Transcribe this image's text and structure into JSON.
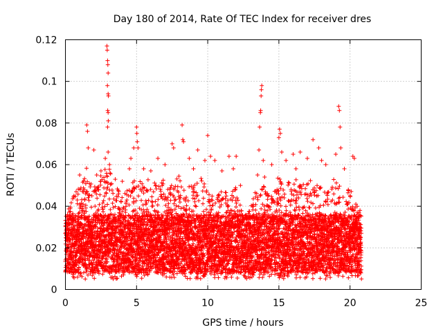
{
  "chart_data": {
    "type": "scatter",
    "title": "Day 180 of 2014, Rate Of TEC Index for receiver dres",
    "xlabel": "GPS time / hours",
    "ylabel": "ROTI / TECUs",
    "xlim": [
      0,
      25
    ],
    "ylim": [
      0,
      0.12
    ],
    "x_ticks": [
      0,
      5,
      10,
      15,
      20,
      25
    ],
    "y_ticks": [
      0,
      0.02,
      0.04,
      0.06,
      0.08,
      0.1,
      0.12
    ],
    "x_tick_labels": [
      "0",
      "5",
      "10",
      "15",
      "20",
      "25"
    ],
    "y_tick_labels": [
      "0",
      "0.02",
      "0.04",
      "0.06",
      "0.08",
      "0.1",
      "0.12"
    ],
    "grid": true,
    "legend": "none",
    "marker": "plus",
    "marker_color": "#ff0000",
    "x_data_range": [
      0,
      20.8
    ],
    "dense_band": [
      0.005,
      0.04
    ],
    "envelope": [
      [
        0.0,
        0.033
      ],
      [
        0.5,
        0.046
      ],
      [
        1.0,
        0.05
      ],
      [
        1.5,
        0.06
      ],
      [
        2.0,
        0.05
      ],
      [
        2.5,
        0.055
      ],
      [
        3.0,
        0.06
      ],
      [
        3.5,
        0.05
      ],
      [
        4.0,
        0.045
      ],
      [
        4.5,
        0.05
      ],
      [
        5.0,
        0.055
      ],
      [
        5.5,
        0.05
      ],
      [
        6.0,
        0.055
      ],
      [
        6.5,
        0.05
      ],
      [
        7.0,
        0.055
      ],
      [
        7.5,
        0.05
      ],
      [
        8.0,
        0.055
      ],
      [
        8.5,
        0.05
      ],
      [
        9.0,
        0.05
      ],
      [
        9.5,
        0.055
      ],
      [
        10.0,
        0.05
      ],
      [
        10.5,
        0.045
      ],
      [
        11.0,
        0.05
      ],
      [
        11.5,
        0.045
      ],
      [
        12.0,
        0.05
      ],
      [
        12.5,
        0.035
      ],
      [
        13.0,
        0.04
      ],
      [
        13.5,
        0.05
      ],
      [
        14.0,
        0.05
      ],
      [
        14.5,
        0.045
      ],
      [
        15.0,
        0.055
      ],
      [
        15.5,
        0.05
      ],
      [
        16.0,
        0.055
      ],
      [
        16.5,
        0.05
      ],
      [
        17.0,
        0.055
      ],
      [
        17.5,
        0.05
      ],
      [
        18.0,
        0.05
      ],
      [
        18.5,
        0.05
      ],
      [
        19.0,
        0.055
      ],
      [
        19.5,
        0.045
      ],
      [
        20.0,
        0.05
      ],
      [
        20.5,
        0.04
      ],
      [
        20.8,
        0.035
      ]
    ],
    "outliers": [
      [
        0.3,
        0.034
      ],
      [
        0.6,
        0.045
      ],
      [
        1.0,
        0.055
      ],
      [
        1.5,
        0.079
      ],
      [
        1.55,
        0.076
      ],
      [
        1.6,
        0.068
      ],
      [
        2.0,
        0.067
      ],
      [
        2.2,
        0.055
      ],
      [
        2.5,
        0.057
      ],
      [
        2.8,
        0.063
      ],
      [
        2.92,
        0.117
      ],
      [
        2.94,
        0.115
      ],
      [
        2.96,
        0.11
      ],
      [
        2.98,
        0.108
      ],
      [
        3.0,
        0.104
      ],
      [
        2.95,
        0.098
      ],
      [
        3.0,
        0.094
      ],
      [
        3.02,
        0.093
      ],
      [
        2.97,
        0.086
      ],
      [
        3.0,
        0.085
      ],
      [
        3.01,
        0.081
      ],
      [
        2.96,
        0.078
      ],
      [
        3.0,
        0.066
      ],
      [
        3.1,
        0.06
      ],
      [
        3.5,
        0.053
      ],
      [
        4.0,
        0.052
      ],
      [
        4.5,
        0.058
      ],
      [
        4.6,
        0.063
      ],
      [
        4.8,
        0.068
      ],
      [
        5.0,
        0.078
      ],
      [
        5.02,
        0.075
      ],
      [
        5.05,
        0.071
      ],
      [
        5.1,
        0.068
      ],
      [
        5.5,
        0.058
      ],
      [
        6.0,
        0.057
      ],
      [
        6.5,
        0.063
      ],
      [
        7.0,
        0.06
      ],
      [
        7.5,
        0.07
      ],
      [
        7.6,
        0.068
      ],
      [
        8.2,
        0.079
      ],
      [
        8.25,
        0.072
      ],
      [
        8.3,
        0.071
      ],
      [
        8.7,
        0.063
      ],
      [
        9.0,
        0.058
      ],
      [
        9.3,
        0.067
      ],
      [
        9.8,
        0.062
      ],
      [
        10.0,
        0.074
      ],
      [
        10.2,
        0.064
      ],
      [
        10.5,
        0.062
      ],
      [
        11.0,
        0.057
      ],
      [
        11.5,
        0.064
      ],
      [
        11.8,
        0.058
      ],
      [
        12.0,
        0.064
      ],
      [
        12.3,
        0.05
      ],
      [
        13.5,
        0.055
      ],
      [
        13.6,
        0.067
      ],
      [
        13.65,
        0.078
      ],
      [
        13.7,
        0.085
      ],
      [
        13.72,
        0.086
      ],
      [
        13.75,
        0.093
      ],
      [
        13.77,
        0.096
      ],
      [
        13.8,
        0.098
      ],
      [
        13.9,
        0.062
      ],
      [
        14.0,
        0.054
      ],
      [
        14.5,
        0.06
      ],
      [
        15.0,
        0.073
      ],
      [
        15.05,
        0.077
      ],
      [
        15.1,
        0.075
      ],
      [
        15.2,
        0.066
      ],
      [
        15.5,
        0.062
      ],
      [
        16.0,
        0.065
      ],
      [
        16.2,
        0.058
      ],
      [
        16.5,
        0.066
      ],
      [
        17.0,
        0.063
      ],
      [
        17.4,
        0.072
      ],
      [
        17.8,
        0.068
      ],
      [
        18.0,
        0.062
      ],
      [
        18.3,
        0.06
      ],
      [
        19.0,
        0.065
      ],
      [
        19.2,
        0.088
      ],
      [
        19.25,
        0.086
      ],
      [
        19.3,
        0.078
      ],
      [
        19.35,
        0.068
      ],
      [
        19.6,
        0.058
      ],
      [
        20.2,
        0.064
      ],
      [
        20.3,
        0.063
      ],
      [
        20.5,
        0.04
      ],
      [
        20.7,
        0.038
      ]
    ]
  }
}
